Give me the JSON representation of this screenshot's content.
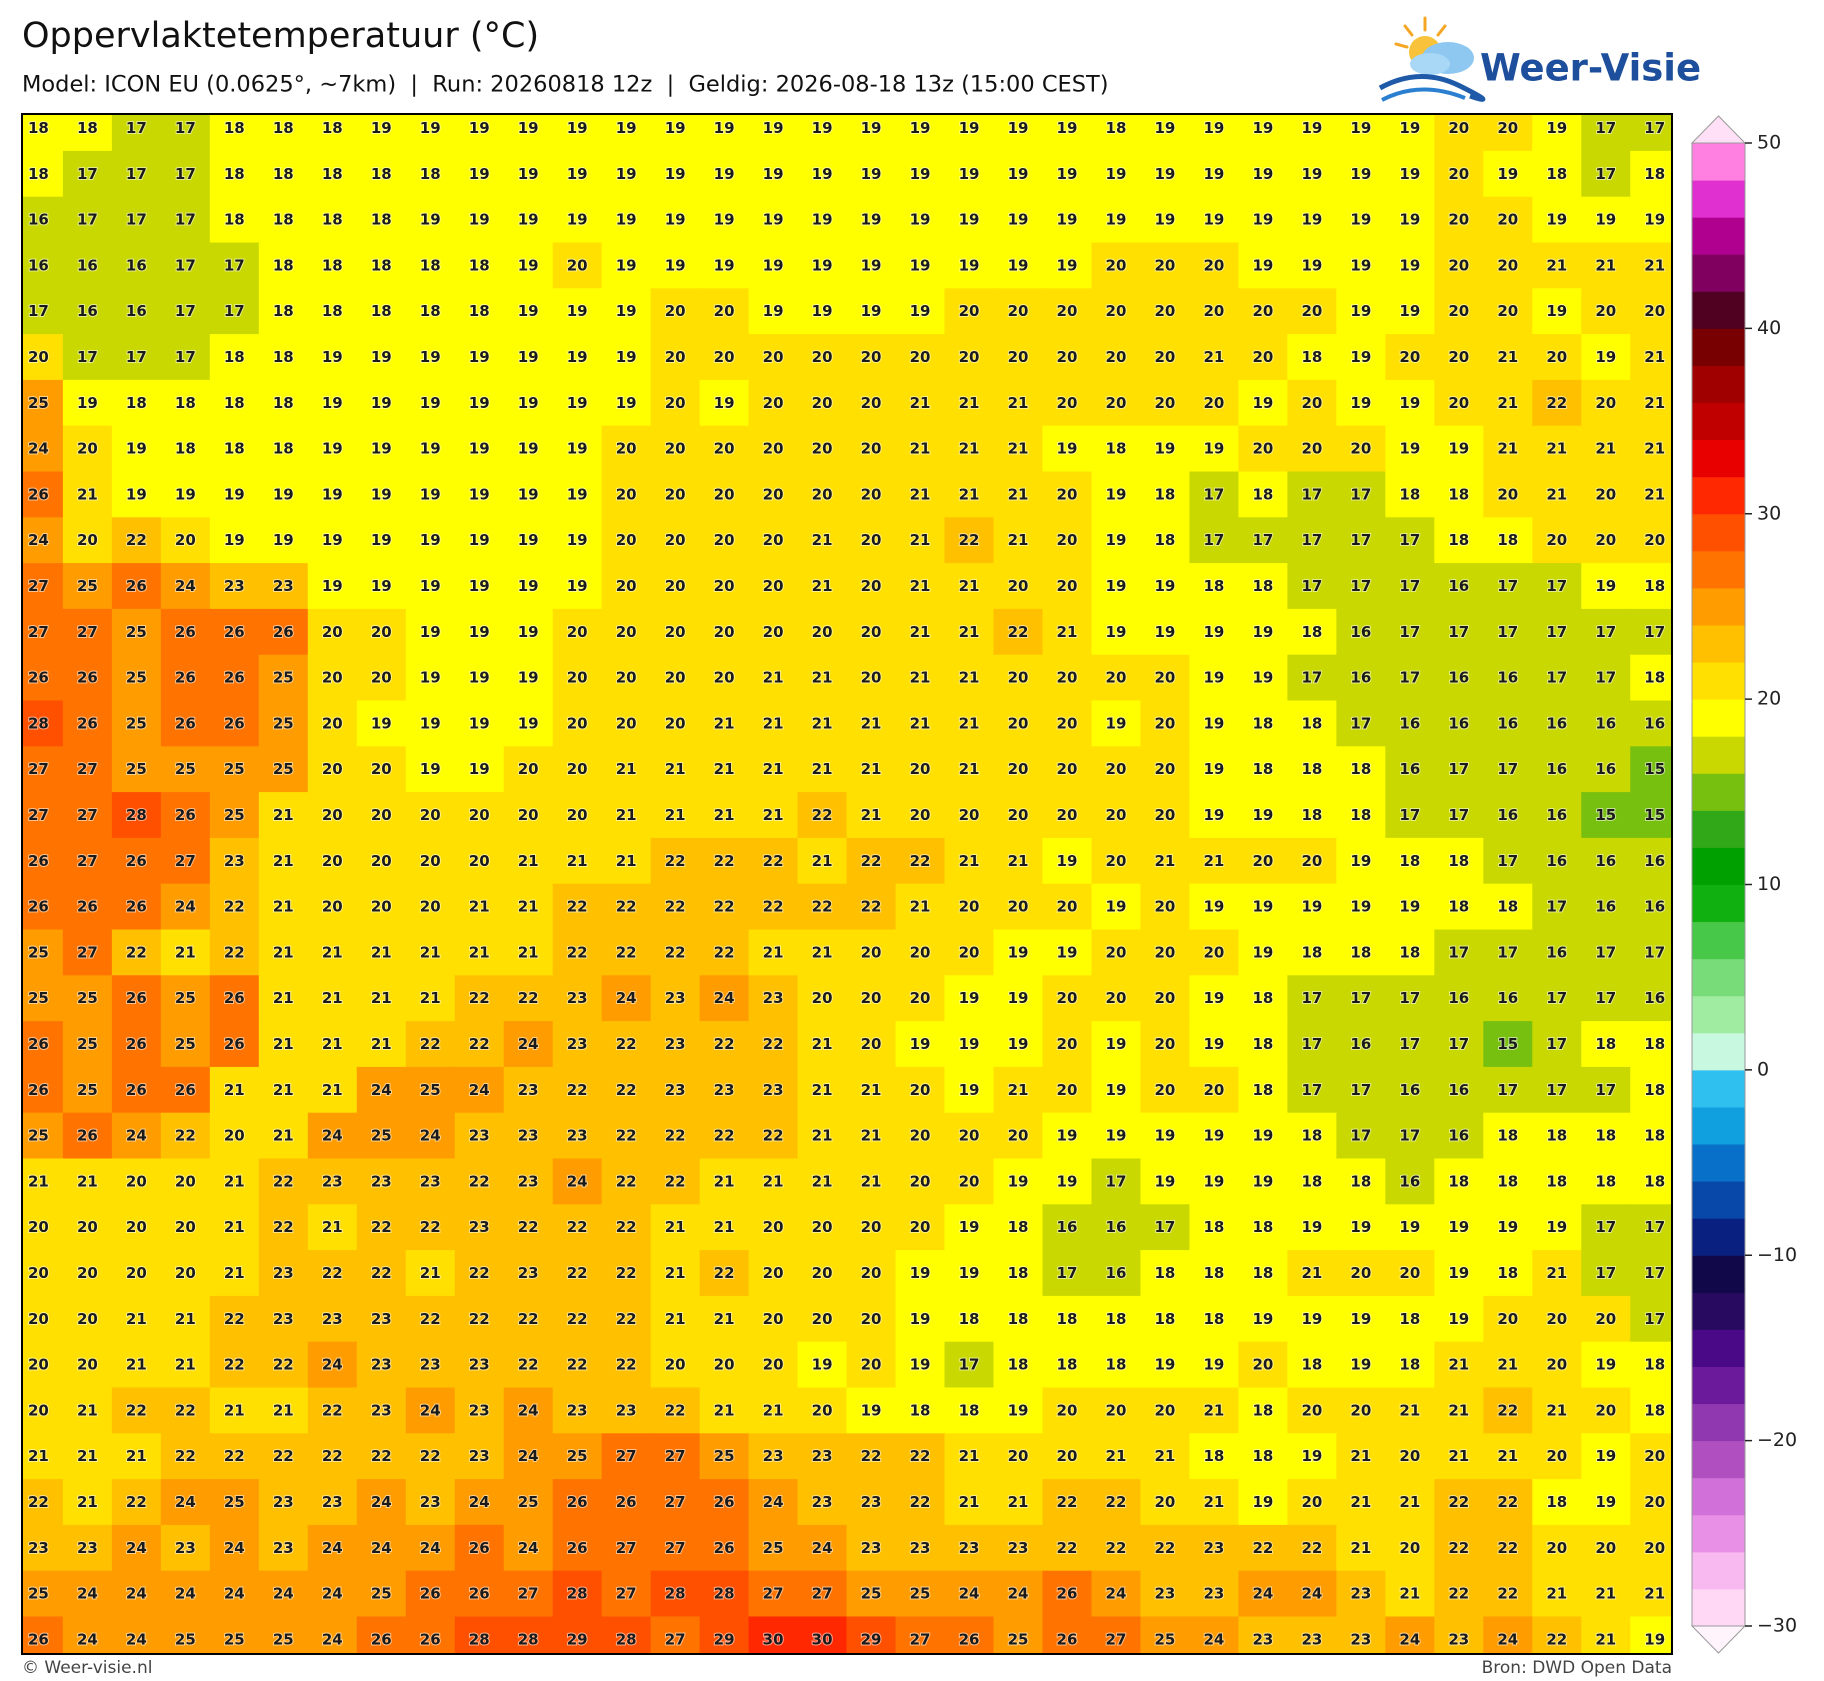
{
  "header": {
    "title": "Oppervlaktetemperatuur (°C)",
    "subtitle": "Model: ICON EU (0.0625°, ~7km)  |  Run: 20260818 12z  |  Geldig: 2026-08-18 13z (15:00 CEST)",
    "logo": "Weer-Visie"
  },
  "map": {
    "grid": [
      [
        18,
        18,
        17,
        17,
        18,
        18,
        18,
        19,
        19,
        19,
        19,
        19,
        19,
        19,
        19,
        19,
        19,
        19,
        19,
        19,
        19,
        19,
        18,
        19,
        19,
        19,
        19,
        19,
        19,
        20,
        20,
        19,
        17,
        17
      ],
      [
        18,
        17,
        17,
        17,
        18,
        18,
        18,
        18,
        18,
        19,
        19,
        19,
        19,
        19,
        19,
        19,
        19,
        19,
        19,
        19,
        19,
        19,
        19,
        19,
        19,
        19,
        19,
        19,
        19,
        20,
        19,
        18,
        17,
        18
      ],
      [
        16,
        17,
        17,
        17,
        18,
        18,
        18,
        18,
        19,
        19,
        19,
        19,
        19,
        19,
        19,
        19,
        19,
        19,
        19,
        19,
        19,
        19,
        19,
        19,
        19,
        19,
        19,
        19,
        19,
        20,
        20,
        19,
        19,
        19
      ],
      [
        16,
        16,
        16,
        17,
        17,
        18,
        18,
        18,
        18,
        18,
        19,
        20,
        19,
        19,
        19,
        19,
        19,
        19,
        19,
        19,
        19,
        19,
        20,
        20,
        20,
        19,
        19,
        19,
        19,
        20,
        20,
        21,
        21,
        21
      ],
      [
        17,
        16,
        16,
        17,
        17,
        18,
        18,
        18,
        18,
        18,
        19,
        19,
        19,
        20,
        20,
        19,
        19,
        19,
        19,
        20,
        20,
        20,
        20,
        20,
        20,
        20,
        20,
        19,
        19,
        20,
        20,
        19,
        20,
        20
      ],
      [
        20,
        17,
        17,
        17,
        18,
        18,
        19,
        19,
        19,
        19,
        19,
        19,
        19,
        20,
        20,
        20,
        20,
        20,
        20,
        20,
        20,
        20,
        20,
        20,
        21,
        20,
        18,
        19,
        20,
        20,
        21,
        20,
        19,
        21
      ],
      [
        25,
        19,
        18,
        18,
        18,
        18,
        19,
        19,
        19,
        19,
        19,
        19,
        19,
        20,
        19,
        20,
        20,
        20,
        21,
        21,
        21,
        20,
        20,
        20,
        20,
        19,
        20,
        19,
        19,
        20,
        21,
        22,
        20,
        21
      ],
      [
        24,
        20,
        19,
        18,
        18,
        18,
        19,
        19,
        19,
        19,
        19,
        19,
        20,
        20,
        20,
        20,
        20,
        20,
        21,
        21,
        21,
        19,
        18,
        19,
        19,
        20,
        20,
        20,
        19,
        19,
        21,
        21,
        21,
        21
      ],
      [
        26,
        21,
        19,
        19,
        19,
        19,
        19,
        19,
        19,
        19,
        19,
        19,
        20,
        20,
        20,
        20,
        20,
        20,
        21,
        21,
        21,
        20,
        19,
        18,
        17,
        18,
        17,
        17,
        18,
        18,
        20,
        21,
        20,
        21
      ],
      [
        24,
        20,
        22,
        20,
        19,
        19,
        19,
        19,
        19,
        19,
        19,
        19,
        20,
        20,
        20,
        20,
        21,
        20,
        21,
        22,
        21,
        20,
        19,
        18,
        17,
        17,
        17,
        17,
        17,
        18,
        18,
        20,
        20,
        20
      ],
      [
        27,
        25,
        26,
        24,
        23,
        23,
        19,
        19,
        19,
        19,
        19,
        19,
        20,
        20,
        20,
        20,
        21,
        20,
        21,
        21,
        20,
        20,
        19,
        19,
        18,
        18,
        17,
        17,
        17,
        16,
        17,
        17,
        19,
        18
      ],
      [
        27,
        27,
        25,
        26,
        26,
        26,
        20,
        20,
        19,
        19,
        19,
        20,
        20,
        20,
        20,
        20,
        20,
        20,
        21,
        21,
        22,
        21,
        19,
        19,
        19,
        19,
        18,
        16,
        17,
        17,
        17,
        17,
        17,
        17
      ],
      [
        26,
        26,
        25,
        26,
        26,
        25,
        20,
        20,
        19,
        19,
        19,
        20,
        20,
        20,
        20,
        21,
        21,
        20,
        21,
        21,
        20,
        20,
        20,
        20,
        19,
        19,
        17,
        16,
        17,
        16,
        16,
        17,
        17,
        18
      ],
      [
        28,
        26,
        25,
        26,
        26,
        25,
        20,
        19,
        19,
        19,
        19,
        20,
        20,
        20,
        21,
        21,
        21,
        21,
        21,
        21,
        20,
        20,
        19,
        20,
        19,
        18,
        18,
        17,
        16,
        16,
        16,
        16,
        16,
        16
      ],
      [
        27,
        27,
        25,
        25,
        25,
        25,
        20,
        20,
        19,
        19,
        20,
        20,
        21,
        21,
        21,
        21,
        21,
        21,
        20,
        21,
        20,
        20,
        20,
        20,
        19,
        18,
        18,
        18,
        16,
        17,
        17,
        16,
        16,
        15
      ],
      [
        27,
        27,
        28,
        26,
        25,
        21,
        20,
        20,
        20,
        20,
        20,
        20,
        21,
        21,
        21,
        21,
        22,
        21,
        20,
        20,
        20,
        20,
        20,
        20,
        19,
        19,
        18,
        18,
        17,
        17,
        16,
        16,
        15,
        15
      ],
      [
        26,
        27,
        26,
        27,
        23,
        21,
        20,
        20,
        20,
        20,
        21,
        21,
        21,
        22,
        22,
        22,
        21,
        22,
        22,
        21,
        21,
        19,
        20,
        21,
        21,
        20,
        20,
        19,
        18,
        18,
        17,
        16,
        16,
        16
      ],
      [
        26,
        26,
        26,
        24,
        22,
        21,
        20,
        20,
        20,
        21,
        21,
        22,
        22,
        22,
        22,
        22,
        22,
        22,
        21,
        20,
        20,
        20,
        19,
        20,
        19,
        19,
        19,
        19,
        19,
        18,
        18,
        17,
        16,
        16
      ],
      [
        25,
        27,
        22,
        21,
        22,
        21,
        21,
        21,
        21,
        21,
        21,
        22,
        22,
        22,
        22,
        21,
        21,
        20,
        20,
        20,
        19,
        19,
        20,
        20,
        20,
        19,
        18,
        18,
        18,
        17,
        17,
        16,
        17,
        17
      ],
      [
        25,
        25,
        26,
        25,
        26,
        21,
        21,
        21,
        21,
        22,
        22,
        23,
        24,
        23,
        24,
        23,
        20,
        20,
        20,
        19,
        19,
        20,
        20,
        20,
        19,
        18,
        17,
        17,
        17,
        16,
        16,
        17,
        17,
        16
      ],
      [
        26,
        25,
        26,
        25,
        26,
        21,
        21,
        21,
        22,
        22,
        24,
        23,
        22,
        23,
        22,
        22,
        21,
        20,
        19,
        19,
        19,
        20,
        19,
        20,
        19,
        18,
        17,
        16,
        17,
        17,
        15,
        17,
        18,
        18
      ],
      [
        26,
        25,
        26,
        26,
        21,
        21,
        21,
        24,
        25,
        24,
        23,
        22,
        22,
        23,
        23,
        23,
        21,
        21,
        20,
        19,
        21,
        20,
        19,
        20,
        20,
        18,
        17,
        17,
        16,
        16,
        17,
        17,
        17,
        18
      ],
      [
        25,
        26,
        24,
        22,
        20,
        21,
        24,
        25,
        24,
        23,
        23,
        23,
        22,
        22,
        22,
        22,
        21,
        21,
        20,
        20,
        20,
        19,
        19,
        19,
        19,
        19,
        18,
        17,
        17,
        16,
        18,
        18,
        18,
        18
      ],
      [
        21,
        21,
        20,
        20,
        21,
        22,
        23,
        23,
        23,
        22,
        23,
        24,
        22,
        22,
        21,
        21,
        21,
        21,
        20,
        20,
        19,
        19,
        17,
        19,
        19,
        19,
        18,
        18,
        16,
        18,
        18,
        18,
        18,
        18
      ],
      [
        20,
        20,
        20,
        20,
        21,
        22,
        21,
        22,
        22,
        23,
        22,
        22,
        22,
        21,
        21,
        20,
        20,
        20,
        20,
        19,
        18,
        16,
        16,
        17,
        18,
        18,
        19,
        19,
        19,
        19,
        19,
        19,
        17,
        17
      ],
      [
        20,
        20,
        20,
        20,
        21,
        23,
        22,
        22,
        21,
        22,
        23,
        22,
        22,
        21,
        22,
        20,
        20,
        20,
        19,
        19,
        18,
        17,
        16,
        18,
        18,
        18,
        21,
        20,
        20,
        19,
        18,
        21,
        17,
        17
      ],
      [
        20,
        20,
        21,
        21,
        22,
        23,
        23,
        23,
        22,
        22,
        22,
        22,
        22,
        21,
        21,
        20,
        20,
        20,
        19,
        18,
        18,
        18,
        18,
        18,
        18,
        19,
        19,
        19,
        18,
        19,
        20,
        20,
        20,
        17
      ],
      [
        20,
        20,
        21,
        21,
        22,
        22,
        24,
        23,
        23,
        23,
        22,
        22,
        22,
        20,
        20,
        20,
        19,
        20,
        19,
        17,
        18,
        18,
        18,
        19,
        19,
        20,
        18,
        19,
        18,
        21,
        21,
        20,
        19,
        18
      ],
      [
        20,
        21,
        22,
        22,
        21,
        21,
        22,
        23,
        24,
        23,
        24,
        23,
        23,
        22,
        21,
        21,
        20,
        19,
        18,
        18,
        19,
        20,
        20,
        20,
        21,
        18,
        20,
        20,
        21,
        21,
        22,
        21,
        20,
        18
      ],
      [
        21,
        21,
        21,
        22,
        22,
        22,
        22,
        22,
        22,
        23,
        24,
        25,
        27,
        27,
        25,
        23,
        23,
        22,
        22,
        21,
        20,
        20,
        21,
        21,
        18,
        18,
        19,
        21,
        20,
        21,
        21,
        20,
        19,
        20
      ],
      [
        22,
        21,
        22,
        24,
        25,
        23,
        23,
        24,
        23,
        24,
        25,
        26,
        26,
        27,
        26,
        24,
        23,
        23,
        22,
        21,
        21,
        22,
        22,
        20,
        21,
        19,
        20,
        21,
        21,
        22,
        22,
        18,
        19,
        20
      ],
      [
        23,
        23,
        24,
        23,
        24,
        23,
        24,
        24,
        24,
        26,
        24,
        26,
        27,
        27,
        26,
        25,
        24,
        23,
        23,
        23,
        23,
        22,
        22,
        22,
        23,
        22,
        22,
        21,
        20,
        22,
        22,
        20,
        20,
        20
      ],
      [
        25,
        24,
        24,
        24,
        24,
        24,
        24,
        25,
        26,
        26,
        27,
        28,
        27,
        28,
        28,
        27,
        27,
        25,
        25,
        24,
        24,
        26,
        24,
        23,
        23,
        24,
        24,
        23,
        21,
        22,
        22,
        21,
        21,
        21
      ],
      [
        26,
        24,
        24,
        25,
        25,
        25,
        24,
        26,
        26,
        28,
        28,
        29,
        28,
        27,
        29,
        30,
        30,
        29,
        27,
        26,
        25,
        26,
        27,
        25,
        24,
        23,
        23,
        23,
        24,
        23,
        24,
        22,
        21,
        19
      ]
    ]
  },
  "colorbar": {
    "lim": [
      -30,
      50
    ],
    "ticks": [
      {
        "value": -30,
        "label": "−30"
      },
      {
        "value": -20,
        "label": "−20"
      },
      {
        "value": -10,
        "label": "−10"
      },
      0,
      10,
      20,
      30,
      40,
      50
    ],
    "colors": [
      "#ffd8f6",
      "#f8b8f0",
      "#e890e6",
      "#d070d8",
      "#b050c0",
      "#9038b0",
      "#6a1a9a",
      "#4a0a88",
      "#280a60",
      "#100848",
      "#0a2080",
      "#0848a8",
      "#0870c8",
      "#10a0e0",
      "#30c0f0",
      "#c8f8e0",
      "#a0eca0",
      "#78dc78",
      "#48c848",
      "#10b010",
      "#00a000",
      "#30a818",
      "#78c010",
      "#c8d800",
      "#ffff00",
      "#ffe000",
      "#ffc000",
      "#ff9c00",
      "#ff7400",
      "#ff5000",
      "#ff2800",
      "#e80000",
      "#c00000",
      "#a00000",
      "#780000",
      "#500020",
      "#800060",
      "#b00090",
      "#e030d0",
      "#ff80e0"
    ],
    "over": "#ffe0f6",
    "under": "#fff4fc"
  },
  "footer": {
    "left": "© Weer-visie.nl",
    "right": "Bron: DWD Open Data"
  }
}
